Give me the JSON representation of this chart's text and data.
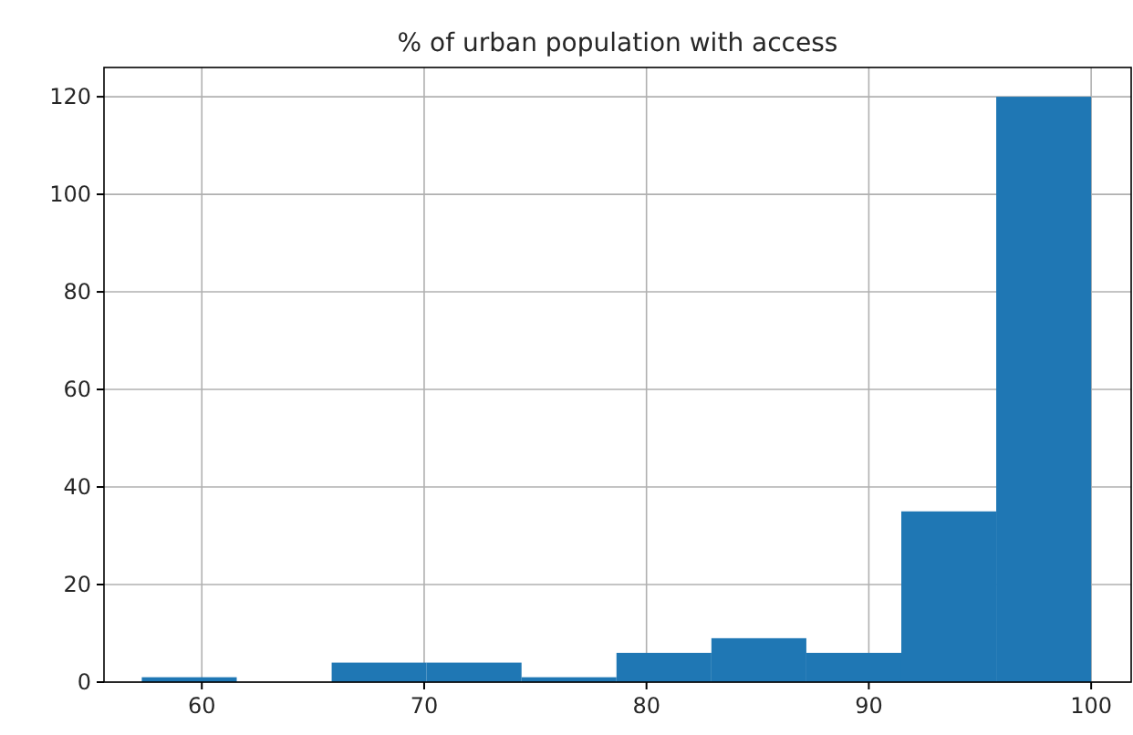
{
  "chart_data": {
    "type": "histogram",
    "title": "% of urban population with access",
    "bins": [
      57.3,
      61.57,
      65.84,
      70.11,
      74.38,
      78.65,
      82.92,
      87.19,
      91.46,
      95.73,
      100
    ],
    "values": [
      1,
      0,
      4,
      4,
      1,
      6,
      9,
      6,
      35,
      120
    ],
    "color": "#1f77b4",
    "xlim": [
      55.6,
      101.8
    ],
    "ylim": [
      0,
      126
    ],
    "xticks": [
      60,
      70,
      80,
      90,
      100
    ],
    "yticks": [
      0,
      20,
      40,
      60,
      80,
      100,
      120
    ],
    "grid": true
  }
}
